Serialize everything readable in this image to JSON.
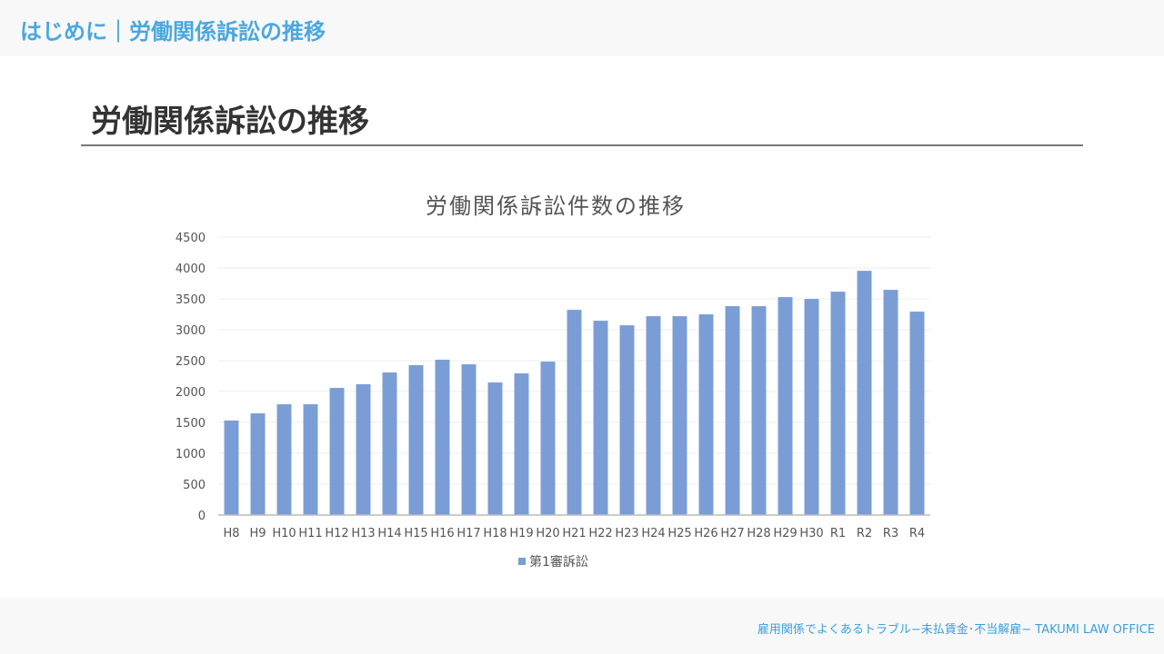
{
  "header": {
    "title": "はじめに｜労働関係訴訟の推移"
  },
  "slide": {
    "title": "労働関係訴訟の推移"
  },
  "footer": {
    "text": "雇用関係でよくあるトラブル−未払賃金･不当解雇−  TAKUMI LAW OFFICE"
  },
  "chart_data": {
    "type": "bar",
    "title": "労働関係訴訟件数の推移",
    "xlabel": "",
    "ylabel": "",
    "ylim": [
      0,
      4500
    ],
    "yticks": [
      0,
      500,
      1000,
      1500,
      2000,
      2500,
      3000,
      3500,
      4000,
      4500
    ],
    "grid": true,
    "legend": "bottom",
    "color": "#7b9dd5",
    "categories": [
      "H8",
      "H9",
      "H10",
      "H11",
      "H12",
      "H13",
      "H14",
      "H15",
      "H16",
      "H17",
      "H18",
      "H19",
      "H20",
      "H21",
      "H22",
      "H23",
      "H24",
      "H25",
      "H26",
      "H27",
      "H28",
      "H29",
      "H30",
      "R1",
      "R2",
      "R3",
      "R4"
    ],
    "series": [
      {
        "name": "第1審訴訟",
        "values": [
          1530,
          1646,
          1793,
          1793,
          2058,
          2117,
          2308,
          2426,
          2514,
          2440,
          2146,
          2293,
          2484,
          3322,
          3146,
          3072,
          3219,
          3219,
          3249,
          3381,
          3381,
          3528,
          3499,
          3616,
          3954,
          3646,
          3293
        ]
      }
    ]
  }
}
